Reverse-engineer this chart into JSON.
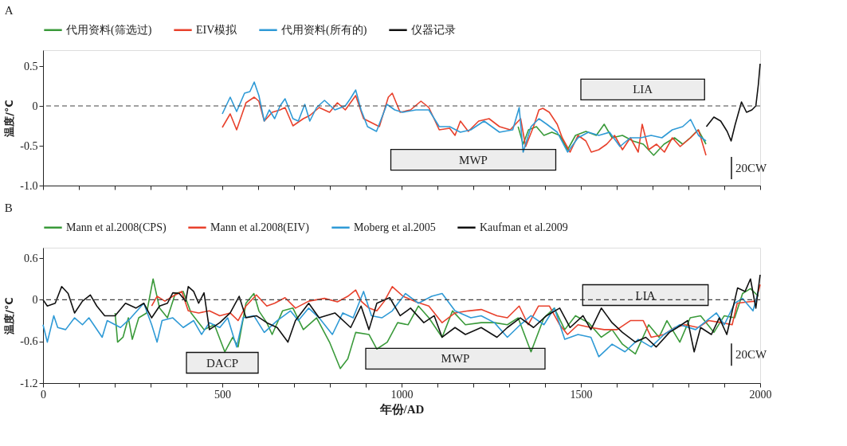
{
  "chart_data": [
    {
      "type": "line",
      "title": "A",
      "ylabel": "温度/℃",
      "xlim": [
        0,
        2000
      ],
      "ylim": [
        -1.0,
        0.7
      ],
      "yticks": [
        {
          "value": -1.0,
          "label": "-1.0"
        },
        -0.5,
        0,
        0.5
      ],
      "xticks": [
        0,
        {
          "value": 100,
          "label": null
        },
        {
          "value": 200,
          "label": null
        },
        {
          "value": 300,
          "label": null
        },
        {
          "value": 400,
          "label": null
        },
        500,
        {
          "value": 600,
          "label": null
        },
        {
          "value": 700,
          "label": null
        },
        {
          "value": 800,
          "label": null
        },
        {
          "value": 900,
          "label": null
        },
        1000,
        {
          "value": 1100,
          "label": null
        },
        {
          "value": 1200,
          "label": null
        },
        {
          "value": 1300,
          "label": null
        },
        {
          "value": 1400,
          "label": null
        },
        1500,
        {
          "value": 1600,
          "label": null
        },
        {
          "value": 1700,
          "label": null
        },
        {
          "value": 1800,
          "label": null
        },
        {
          "value": 1900,
          "label": null
        },
        2000
      ],
      "tick_labels": "y",
      "legend": "top",
      "grid": false,
      "series": [
        {
          "name": "代用资料(筛选过)",
          "color": "#3a9a3a",
          "x": [
            1325,
            1339,
            1354,
            1376,
            1397,
            1419,
            1441,
            1463,
            1485,
            1514,
            1543,
            1565,
            1587,
            1616,
            1645,
            1674,
            1703,
            1732,
            1761,
            1784,
            1805,
            1827,
            1849
          ],
          "values": [
            -0.26,
            -0.48,
            -0.3,
            -0.26,
            -0.37,
            -0.33,
            -0.37,
            -0.55,
            -0.37,
            -0.32,
            -0.37,
            -0.23,
            -0.4,
            -0.37,
            -0.44,
            -0.48,
            -0.62,
            -0.48,
            -0.4,
            -0.48,
            -0.4,
            -0.3,
            -0.48
          ]
        },
        {
          "name": "EIV模拟",
          "color": "#e8412c",
          "x": [
            500,
            522,
            540,
            566,
            589,
            602,
            617,
            639,
            661,
            675,
            697,
            726,
            744,
            770,
            799,
            821,
            843,
            872,
            894,
            916,
            938,
            963,
            974,
            996,
            1025,
            1054,
            1076,
            1105,
            1134,
            1149,
            1164,
            1186,
            1215,
            1244,
            1273,
            1303,
            1332,
            1346,
            1368,
            1383,
            1394,
            1412,
            1434,
            1448,
            1470,
            1492,
            1514,
            1529,
            1550,
            1572,
            1594,
            1616,
            1638,
            1660,
            1671,
            1689,
            1711,
            1733,
            1755,
            1777,
            1806,
            1828,
            1849
          ],
          "values": [
            -0.27,
            -0.1,
            -0.3,
            0.04,
            0.11,
            0.06,
            -0.19,
            -0.08,
            -0.05,
            -0.02,
            -0.25,
            -0.16,
            -0.12,
            -0.02,
            -0.08,
            0.04,
            -0.05,
            0.13,
            -0.16,
            -0.21,
            -0.26,
            0.11,
            0.16,
            -0.08,
            -0.05,
            0.06,
            -0.02,
            -0.3,
            -0.28,
            -0.37,
            -0.19,
            -0.32,
            -0.19,
            -0.16,
            -0.26,
            -0.3,
            -0.16,
            -0.51,
            -0.26,
            -0.05,
            -0.03,
            -0.08,
            -0.23,
            -0.4,
            -0.58,
            -0.37,
            -0.44,
            -0.58,
            -0.55,
            -0.48,
            -0.37,
            -0.55,
            -0.4,
            -0.58,
            -0.23,
            -0.55,
            -0.48,
            -0.58,
            -0.4,
            -0.51,
            -0.4,
            -0.3,
            -0.62
          ]
        },
        {
          "name": "代用资料(所有的)",
          "color": "#2f9ad6",
          "x": [
            500,
            522,
            540,
            562,
            577,
            589,
            602,
            617,
            631,
            646,
            661,
            675,
            697,
            712,
            730,
            744,
            763,
            785,
            814,
            843,
            857,
            872,
            887,
            905,
            930,
            959,
            981,
            1003,
            1040,
            1076,
            1105,
            1134,
            1164,
            1193,
            1230,
            1273,
            1310,
            1328,
            1339,
            1361,
            1383,
            1405,
            1434,
            1463,
            1492,
            1521,
            1550,
            1580,
            1609,
            1638,
            1667,
            1696,
            1726,
            1755,
            1784,
            1806,
            1828,
            1849
          ],
          "values": [
            -0.1,
            0.11,
            -0.07,
            0.16,
            0.18,
            0.3,
            0.13,
            -0.19,
            -0.05,
            -0.16,
            0.0,
            0.09,
            -0.16,
            -0.19,
            0.02,
            -0.19,
            -0.02,
            0.07,
            -0.05,
            0.0,
            0.09,
            0.2,
            -0.05,
            -0.26,
            -0.32,
            0.02,
            -0.05,
            -0.08,
            -0.05,
            -0.05,
            -0.26,
            -0.26,
            -0.33,
            -0.3,
            -0.19,
            -0.33,
            -0.3,
            -0.02,
            -0.58,
            -0.26,
            -0.16,
            -0.23,
            -0.33,
            -0.58,
            -0.4,
            -0.33,
            -0.37,
            -0.33,
            -0.51,
            -0.4,
            -0.4,
            -0.37,
            -0.4,
            -0.3,
            -0.26,
            -0.17,
            -0.37,
            -0.44
          ]
        },
        {
          "name": "仪器记录",
          "color": "#111111",
          "x": [
            1850,
            1871,
            1890,
            1908,
            1919,
            1930,
            1948,
            1962,
            1977,
            1988,
            1995,
            2000
          ],
          "values": [
            -0.26,
            -0.14,
            -0.19,
            -0.32,
            -0.44,
            -0.24,
            0.05,
            -0.08,
            -0.05,
            0.0,
            0.27,
            0.53
          ]
        }
      ],
      "ref_lines": [
        {
          "axis": "y",
          "value": 0,
          "label": null,
          "color": "#444444",
          "line_style": "dashed"
        },
        {
          "axis": "x",
          "value": 1920,
          "label": "20CW",
          "color": "#111111"
        }
      ],
      "bands": [
        {
          "axis": "x",
          "from": 970,
          "to": 1430,
          "label": "MWP"
        },
        {
          "axis": "x",
          "from": 1500,
          "to": 1845,
          "label": "LIA"
        }
      ]
    },
    {
      "type": "line",
      "title": "B",
      "xlabel": "年份/AD",
      "ylabel": "温度/℃",
      "xlim": [
        0,
        2000
      ],
      "ylim": [
        -1.2,
        0.75
      ],
      "yticks": [
        -1.2,
        -0.6,
        0,
        0.6
      ],
      "xticks": [
        0,
        {
          "value": 100,
          "label": null
        },
        {
          "value": 200,
          "label": null
        },
        {
          "value": 300,
          "label": null
        },
        {
          "value": 400,
          "label": null
        },
        500,
        {
          "value": 600,
          "label": null
        },
        {
          "value": 700,
          "label": null
        },
        {
          "value": 800,
          "label": null
        },
        {
          "value": 900,
          "label": null
        },
        1000,
        {
          "value": 1100,
          "label": null
        },
        {
          "value": 1200,
          "label": null
        },
        {
          "value": 1300,
          "label": null
        },
        {
          "value": 1400,
          "label": null
        },
        1500,
        {
          "value": 1600,
          "label": null
        },
        {
          "value": 1700,
          "label": null
        },
        {
          "value": 1800,
          "label": null
        },
        {
          "value": 1900,
          "label": null
        },
        2000
      ],
      "legend": "top",
      "grid": false,
      "series": [
        {
          "name": "Mann et al.2008(CPS)",
          "color": "#3a9a3a",
          "x": [
            201,
            208,
            223,
            238,
            249,
            267,
            289,
            307,
            325,
            347,
            369,
            391,
            413,
            449,
            478,
            507,
            529,
            544,
            566,
            588,
            602,
            624,
            639,
            668,
            697,
            726,
            763,
            799,
            829,
            850,
            872,
            909,
            931,
            960,
            989,
            1018,
            1047,
            1076,
            1113,
            1142,
            1178,
            1222,
            1259,
            1295,
            1325,
            1361,
            1397,
            1426,
            1455,
            1485,
            1521,
            1557,
            1587,
            1616,
            1652,
            1689,
            1718,
            1740,
            1776,
            1805,
            1834,
            1871,
            1900,
            1929,
            1951,
            1973,
            1995
          ],
          "values": [
            -0.19,
            -0.61,
            -0.54,
            -0.26,
            -0.57,
            -0.26,
            -0.19,
            0.3,
            -0.12,
            -0.26,
            0.09,
            0.12,
            -0.19,
            -0.43,
            -0.36,
            -0.75,
            -0.54,
            -0.68,
            -0.05,
            0.09,
            -0.16,
            -0.33,
            -0.5,
            -0.16,
            -0.12,
            -0.43,
            -0.26,
            -0.61,
            -0.99,
            -0.85,
            -0.47,
            -0.5,
            -0.71,
            -0.61,
            -0.33,
            -0.36,
            -0.09,
            -0.26,
            -0.54,
            -0.16,
            -0.36,
            -0.33,
            -0.33,
            -0.36,
            -0.26,
            -0.75,
            -0.26,
            -0.12,
            -0.43,
            -0.23,
            -0.33,
            -0.54,
            -0.43,
            -0.64,
            -0.78,
            -0.36,
            -0.54,
            -0.3,
            -0.61,
            -0.26,
            -0.23,
            -0.47,
            -0.23,
            -0.26,
            0.09,
            0.16,
            0.05
          ]
        },
        {
          "name": "Mann et al.2008(EIV)",
          "color": "#e8412c",
          "x": [
            303,
            318,
            340,
            362,
            387,
            405,
            434,
            464,
            493,
            522,
            544,
            566,
            595,
            624,
            646,
            675,
            704,
            741,
            785,
            821,
            850,
            872,
            887,
            909,
            931,
            952,
            974,
            1004,
            1040,
            1076,
            1113,
            1149,
            1186,
            1222,
            1266,
            1295,
            1328,
            1353,
            1382,
            1412,
            1441,
            1463,
            1492,
            1528,
            1565,
            1601,
            1638,
            1674,
            1696,
            1732,
            1762,
            1791,
            1827,
            1856,
            1893,
            1922,
            1936,
            1966,
            1988,
            2000
          ],
          "values": [
            -0.09,
            0.05,
            -0.02,
            0.05,
            0.12,
            -0.16,
            -0.19,
            -0.16,
            -0.23,
            -0.19,
            -0.3,
            -0.09,
            0.07,
            -0.09,
            -0.05,
            0.03,
            -0.12,
            -0.02,
            0.02,
            -0.03,
            0.05,
            0.14,
            -0.02,
            -0.12,
            -0.16,
            -0.02,
            0.19,
            0.05,
            -0.03,
            -0.09,
            -0.33,
            -0.19,
            -0.16,
            -0.14,
            -0.23,
            -0.26,
            -0.09,
            -0.36,
            -0.09,
            -0.09,
            -0.36,
            -0.5,
            -0.36,
            -0.4,
            -0.43,
            -0.43,
            -0.3,
            -0.3,
            -0.54,
            -0.5,
            -0.4,
            -0.36,
            -0.4,
            -0.3,
            -0.33,
            -0.36,
            -0.05,
            -0.03,
            -0.02,
            0.22
          ]
        },
        {
          "name": "Moberg et al.2005",
          "color": "#2f9ad6",
          "x": [
            0,
            12,
            30,
            41,
            63,
            88,
            110,
            128,
            165,
            179,
            216,
            245,
            281,
            303,
            318,
            332,
            362,
            391,
            420,
            442,
            464,
            493,
            515,
            540,
            558,
            588,
            617,
            653,
            690,
            712,
            741,
            770,
            807,
            836,
            865,
            894,
            916,
            945,
            974,
            1011,
            1047,
            1084,
            1113,
            1149,
            1193,
            1222,
            1259,
            1295,
            1331,
            1361,
            1397,
            1426,
            1455,
            1492,
            1528,
            1550,
            1587,
            1623,
            1660,
            1696,
            1732,
            1776,
            1820,
            1878,
            1900,
            1929,
            1951,
            1980,
            1995
          ],
          "values": [
            -0.36,
            -0.61,
            -0.23,
            -0.4,
            -0.43,
            -0.26,
            -0.36,
            -0.26,
            -0.54,
            -0.3,
            -0.4,
            -0.26,
            -0.05,
            -0.36,
            -0.61,
            -0.3,
            -0.26,
            -0.4,
            -0.3,
            -0.5,
            -0.33,
            -0.4,
            -0.26,
            -0.68,
            -0.26,
            -0.23,
            -0.47,
            -0.3,
            -0.16,
            -0.3,
            -0.12,
            -0.26,
            -0.5,
            -0.19,
            -0.26,
            0.12,
            -0.23,
            -0.26,
            -0.16,
            0.09,
            -0.05,
            0.05,
            0.09,
            -0.16,
            -0.26,
            -0.23,
            -0.33,
            -0.54,
            -0.36,
            -0.23,
            -0.36,
            -0.12,
            -0.57,
            -0.5,
            -0.54,
            -0.82,
            -0.64,
            -0.75,
            -0.57,
            -0.68,
            -0.5,
            -0.36,
            -0.43,
            -0.19,
            -0.36,
            -0.05,
            0.02,
            -0.16,
            0.12
          ]
        },
        {
          "name": "Kaufman et al.2009",
          "color": "#111111",
          "x": [
            0,
            12,
            34,
            52,
            70,
            88,
            110,
            132,
            150,
            172,
            201,
            230,
            259,
            281,
            303,
            325,
            347,
            362,
            380,
            398,
            405,
            420,
            434,
            449,
            464,
            493,
            522,
            547,
            566,
            595,
            624,
            653,
            683,
            704,
            741,
            770,
            814,
            858,
            887,
            909,
            931,
            967,
            996,
            1025,
            1062,
            1091,
            1113,
            1149,
            1178,
            1222,
            1266,
            1295,
            1331,
            1368,
            1404,
            1441,
            1470,
            1506,
            1528,
            1557,
            1587,
            1616,
            1652,
            1681,
            1710,
            1747,
            1769,
            1798,
            1816,
            1834,
            1864,
            1886,
            1907,
            1937,
            1958,
            1973,
            1988,
            2000
          ],
          "values": [
            0.0,
            -0.09,
            -0.05,
            0.19,
            0.09,
            -0.19,
            -0.02,
            0.07,
            -0.09,
            -0.23,
            -0.23,
            -0.05,
            -0.12,
            -0.05,
            -0.26,
            -0.09,
            -0.05,
            0.1,
            0.09,
            -0.02,
            0.19,
            0.12,
            -0.05,
            0.1,
            -0.43,
            -0.33,
            -0.19,
            0.05,
            -0.26,
            -0.23,
            -0.33,
            -0.4,
            -0.61,
            -0.3,
            -0.05,
            -0.26,
            -0.19,
            -0.4,
            -0.09,
            -0.43,
            -0.05,
            0.03,
            -0.23,
            -0.12,
            -0.33,
            -0.23,
            -0.54,
            -0.4,
            -0.5,
            -0.4,
            -0.54,
            -0.4,
            -0.26,
            -0.4,
            -0.23,
            -0.12,
            -0.4,
            -0.23,
            -0.43,
            -0.12,
            -0.33,
            -0.47,
            -0.61,
            -0.54,
            -0.68,
            -0.47,
            -0.4,
            -0.3,
            -0.75,
            -0.4,
            -0.5,
            -0.26,
            -0.5,
            0.17,
            0.12,
            0.3,
            -0.12,
            0.36
          ]
        }
      ],
      "ref_lines": [
        {
          "axis": "y",
          "value": 0,
          "label": null,
          "color": "#444444",
          "line_style": "dashed"
        },
        {
          "axis": "x",
          "value": 1920,
          "label": "20CW",
          "color": "#111111"
        }
      ],
      "bands": [
        {
          "axis": "x",
          "from": 400,
          "to": 600,
          "label": "DACP"
        },
        {
          "axis": "x",
          "from": 900,
          "to": 1400,
          "label": "MWP"
        },
        {
          "axis": "x",
          "from": 1505,
          "to": 1855,
          "label": "LIA"
        }
      ]
    }
  ]
}
